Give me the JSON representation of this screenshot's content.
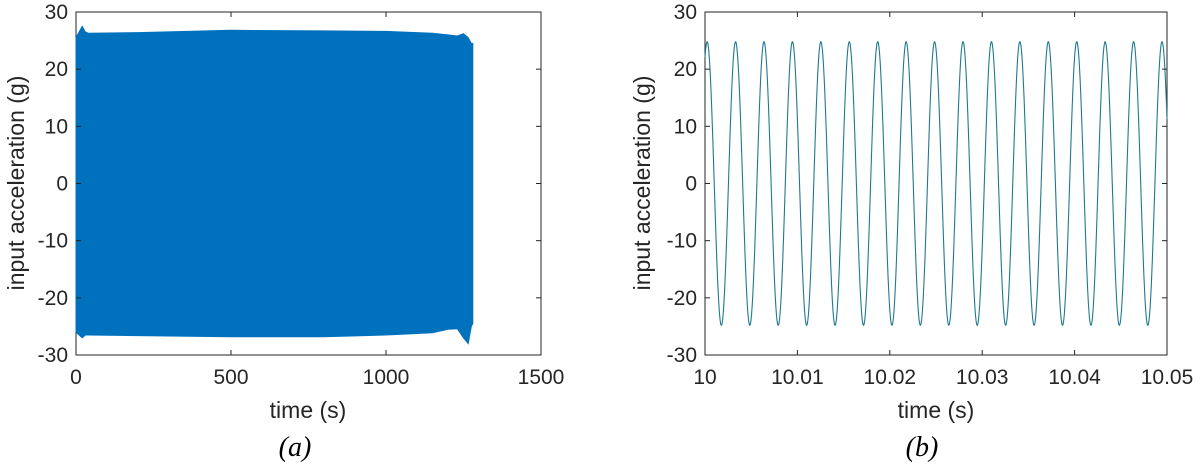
{
  "chart_data": [
    {
      "type": "line",
      "panel": "(a)",
      "xlabel": "time (s)",
      "ylabel": "input acceleration (g)",
      "xlim": [
        0,
        1500
      ],
      "ylim": [
        -30,
        30
      ],
      "xticks": [
        0,
        500,
        1000,
        1500
      ],
      "yticks": [
        -30,
        -20,
        -10,
        0,
        10,
        20,
        30
      ],
      "grid": false,
      "series": [
        {
          "color": "#0072BD",
          "fill": "dense oscillation",
          "x": [
            0,
            20,
            30,
            40,
            200,
            500,
            800,
            1000,
            1150,
            1200,
            1230,
            1250,
            1265,
            1275,
            1280
          ],
          "upper": [
            25.5,
            27.5,
            26.5,
            26.3,
            26.4,
            26.8,
            26.7,
            26.6,
            26.3,
            26.0,
            25.8,
            26.2,
            25.5,
            24.5,
            24.5
          ],
          "lower": [
            -26.0,
            -27.0,
            -26.5,
            -26.5,
            -26.6,
            -26.8,
            -26.8,
            -26.5,
            -26.1,
            -25.5,
            -25.4,
            -27.0,
            -28.0,
            -25.0,
            -24.5
          ]
        }
      ]
    },
    {
      "type": "line",
      "panel": "(b)",
      "xlabel": "time (s)",
      "ylabel": "input acceleration (g)",
      "xlim": [
        10,
        10.05
      ],
      "ylim": [
        -30,
        30
      ],
      "xticks": [
        "10",
        "10.01",
        "10.02",
        "10.03",
        "10.04",
        "10.05"
      ],
      "yticks": [
        -30,
        -20,
        -10,
        0,
        10,
        20,
        30
      ],
      "grid": false,
      "series": [
        {
          "color": "#1F7A8C",
          "signal": "sine",
          "amplitude": 24.8,
          "frequency_hz": 325,
          "phase_rad": 1.1,
          "t_start": 10,
          "t_end": 10.05
        }
      ]
    }
  ],
  "captions": [
    "(a)",
    "(b)"
  ]
}
